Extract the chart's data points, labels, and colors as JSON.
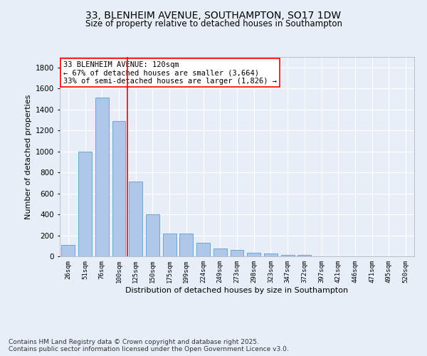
{
  "title1": "33, BLENHEIM AVENUE, SOUTHAMPTON, SO17 1DW",
  "title2": "Size of property relative to detached houses in Southampton",
  "xlabel": "Distribution of detached houses by size in Southampton",
  "ylabel": "Number of detached properties",
  "categories": [
    "26sqm",
    "51sqm",
    "76sqm",
    "100sqm",
    "125sqm",
    "150sqm",
    "175sqm",
    "199sqm",
    "224sqm",
    "249sqm",
    "273sqm",
    "298sqm",
    "323sqm",
    "347sqm",
    "372sqm",
    "397sqm",
    "421sqm",
    "446sqm",
    "471sqm",
    "495sqm",
    "520sqm"
  ],
  "values": [
    110,
    1000,
    1510,
    1290,
    710,
    400,
    215,
    215,
    130,
    75,
    60,
    35,
    30,
    15,
    15,
    0,
    0,
    0,
    0,
    0,
    0
  ],
  "bar_color": "#aec6e8",
  "bar_edge_color": "#5a9fd4",
  "vline_color": "red",
  "vline_pos": 3.5,
  "annotation_text": "33 BLENHEIM AVENUE: 120sqm\n← 67% of detached houses are smaller (3,664)\n33% of semi-detached houses are larger (1,826) →",
  "annotation_box_color": "white",
  "annotation_box_edge_color": "red",
  "ylim": [
    0,
    1900
  ],
  "yticks": [
    0,
    200,
    400,
    600,
    800,
    1000,
    1200,
    1400,
    1600,
    1800
  ],
  "bg_color": "#e8eef8",
  "plot_bg_color": "#e8eef8",
  "footer": "Contains HM Land Registry data © Crown copyright and database right 2025.\nContains public sector information licensed under the Open Government Licence v3.0.",
  "title1_fontsize": 10,
  "title2_fontsize": 8.5,
  "annotation_fontsize": 7.5,
  "footer_fontsize": 6.5,
  "ylabel_fontsize": 8,
  "xlabel_fontsize": 8,
  "ytick_fontsize": 7.5,
  "xtick_fontsize": 6.5
}
